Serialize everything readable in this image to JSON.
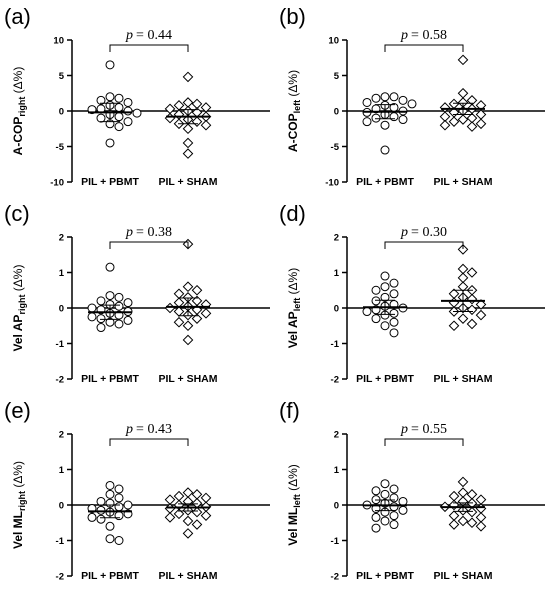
{
  "figure": {
    "categories": [
      "PIL + PBMT",
      "PIL + SHAM"
    ]
  },
  "chart_data": [
    {
      "type": "scatter",
      "panel": "(a)",
      "ylabel_main": "A-COP",
      "ylabel_sub": "right",
      "ylabel_unit": " (Δ%)",
      "ylim": [
        -10,
        10
      ],
      "yticks": [
        -10,
        -5,
        0,
        5,
        10
      ],
      "categories": [
        "PIL + PBMT",
        "PIL + SHAM"
      ],
      "p_value_text": "= 0.44",
      "series": [
        {
          "marker": "circle",
          "values": [
            6.5,
            2.0,
            1.8,
            1.5,
            1.2,
            0.8,
            0.5,
            0.3,
            0.2,
            0.0,
            -0.3,
            -0.5,
            -0.8,
            -1.0,
            -1.5,
            -1.8,
            -2.2,
            -4.5
          ],
          "mean": -0.2,
          "error": 1.3
        },
        {
          "marker": "diamond",
          "values": [
            4.8,
            1.2,
            1.0,
            0.8,
            0.5,
            0.3,
            0.0,
            -0.2,
            -0.5,
            -0.8,
            -1.0,
            -1.2,
            -1.5,
            -1.8,
            -2.0,
            -2.5,
            -4.5,
            -6.0
          ],
          "mean": -0.8,
          "error": 1.0
        }
      ]
    },
    {
      "type": "scatter",
      "panel": "(b)",
      "ylabel_main": "A-COP",
      "ylabel_sub": "left",
      "ylabel_unit": " (Δ%)",
      "ylim": [
        -10,
        10
      ],
      "yticks": [
        -10,
        -5,
        0,
        5,
        10
      ],
      "categories": [
        "PIL + PBMT",
        "PIL + SHAM"
      ],
      "p_value_text": "= 0.58",
      "series": [
        {
          "marker": "circle",
          "values": [
            2.0,
            2.0,
            1.8,
            1.5,
            1.2,
            1.0,
            0.8,
            0.5,
            0.3,
            0.0,
            -0.2,
            -0.5,
            -0.8,
            -1.0,
            -1.2,
            -1.5,
            -2.0,
            -5.5
          ],
          "mean": -0.1,
          "error": 1.0
        },
        {
          "marker": "diamond",
          "values": [
            7.2,
            2.5,
            1.5,
            1.2,
            1.0,
            0.8,
            0.5,
            0.3,
            0.0,
            -0.2,
            -0.5,
            -0.8,
            -1.0,
            -1.2,
            -1.5,
            -1.8,
            -2.0,
            -2.2
          ],
          "mean": 0.3,
          "error": 0.8
        }
      ]
    },
    {
      "type": "scatter",
      "panel": "(c)",
      "ylabel_main": "Vel AP",
      "ylabel_sub": "right",
      "ylabel_unit": " (Δ%)",
      "ylim": [
        -2,
        2
      ],
      "yticks": [
        -2,
        -1,
        0,
        1,
        2
      ],
      "categories": [
        "PIL + PBMT",
        "PIL + SHAM"
      ],
      "p_value_text": "= 0.38",
      "series": [
        {
          "marker": "circle",
          "values": [
            1.15,
            0.35,
            0.3,
            0.2,
            0.15,
            0.1,
            0.05,
            0.0,
            -0.05,
            -0.1,
            -0.15,
            -0.2,
            -0.25,
            -0.3,
            -0.35,
            -0.4,
            -0.45,
            -0.55
          ],
          "mean": -0.12,
          "error": 0.2
        },
        {
          "marker": "diamond",
          "values": [
            1.8,
            0.6,
            0.5,
            0.4,
            0.3,
            0.2,
            0.15,
            0.1,
            0.05,
            0.0,
            -0.05,
            -0.1,
            -0.15,
            -0.2,
            -0.3,
            -0.4,
            -0.5,
            -0.9
          ],
          "mean": 0.03,
          "error": 0.25
        }
      ]
    },
    {
      "type": "scatter",
      "panel": "(d)",
      "ylabel_main": "Vel AP",
      "ylabel_sub": "left",
      "ylabel_unit": " (Δ%)",
      "ylim": [
        -2,
        2
      ],
      "yticks": [
        -2,
        -1,
        0,
        1,
        2
      ],
      "categories": [
        "PIL + PBMT",
        "PIL + SHAM"
      ],
      "p_value_text": "= 0.30",
      "series": [
        {
          "marker": "circle",
          "values": [
            0.9,
            0.7,
            0.6,
            0.5,
            0.4,
            0.3,
            0.2,
            0.1,
            0.05,
            0.0,
            -0.05,
            -0.1,
            -0.15,
            -0.2,
            -0.3,
            -0.4,
            -0.5,
            -0.7
          ],
          "mean": 0.02,
          "error": 0.2
        },
        {
          "marker": "diamond",
          "values": [
            1.65,
            1.1,
            1.0,
            0.85,
            0.6,
            0.5,
            0.4,
            0.3,
            0.25,
            0.15,
            0.1,
            0.0,
            -0.05,
            -0.1,
            -0.2,
            -0.3,
            -0.45,
            -0.5
          ],
          "mean": 0.2,
          "error": 0.3
        }
      ]
    },
    {
      "type": "scatter",
      "panel": "(e)",
      "ylabel_main": "Vel ML",
      "ylabel_sub": "right",
      "ylabel_unit": " (Δ%)",
      "ylim": [
        -2,
        2
      ],
      "yticks": [
        -2,
        -1,
        0,
        1,
        2
      ],
      "categories": [
        "PIL + PBMT",
        "PIL + SHAM"
      ],
      "p_value_text": "= 0.43",
      "series": [
        {
          "marker": "circle",
          "values": [
            0.55,
            0.45,
            0.3,
            0.2,
            0.1,
            0.05,
            0.0,
            -0.05,
            -0.1,
            -0.15,
            -0.2,
            -0.25,
            -0.3,
            -0.35,
            -0.4,
            -0.6,
            -0.95,
            -1.0
          ],
          "mean": -0.18,
          "error": 0.18
        },
        {
          "marker": "diamond",
          "values": [
            0.35,
            0.3,
            0.25,
            0.2,
            0.15,
            0.1,
            0.05,
            0.0,
            -0.05,
            -0.1,
            -0.15,
            -0.2,
            -0.25,
            -0.3,
            -0.35,
            -0.45,
            -0.55,
            -0.8
          ],
          "mean": -0.07,
          "error": 0.1
        }
      ]
    },
    {
      "type": "scatter",
      "panel": "(f)",
      "ylabel_main": "Vel ML",
      "ylabel_sub": "left",
      "ylabel_unit": " (Δ%)",
      "ylim": [
        -2,
        2
      ],
      "yticks": [
        -2,
        -1,
        0,
        1,
        2
      ],
      "categories": [
        "PIL + PBMT",
        "PIL + SHAM"
      ],
      "p_value_text": "= 0.55",
      "series": [
        {
          "marker": "circle",
          "values": [
            0.6,
            0.45,
            0.4,
            0.3,
            0.2,
            0.15,
            0.1,
            0.05,
            0.0,
            -0.05,
            -0.1,
            -0.15,
            -0.2,
            -0.3,
            -0.35,
            -0.45,
            -0.55,
            -0.65
          ],
          "mean": -0.01,
          "error": 0.15
        },
        {
          "marker": "diamond",
          "values": [
            0.65,
            0.35,
            0.3,
            0.25,
            0.15,
            0.1,
            0.05,
            0.0,
            -0.05,
            -0.1,
            -0.15,
            -0.2,
            -0.3,
            -0.35,
            -0.45,
            -0.5,
            -0.55,
            -0.6
          ],
          "mean": -0.06,
          "error": 0.12
        }
      ]
    }
  ]
}
